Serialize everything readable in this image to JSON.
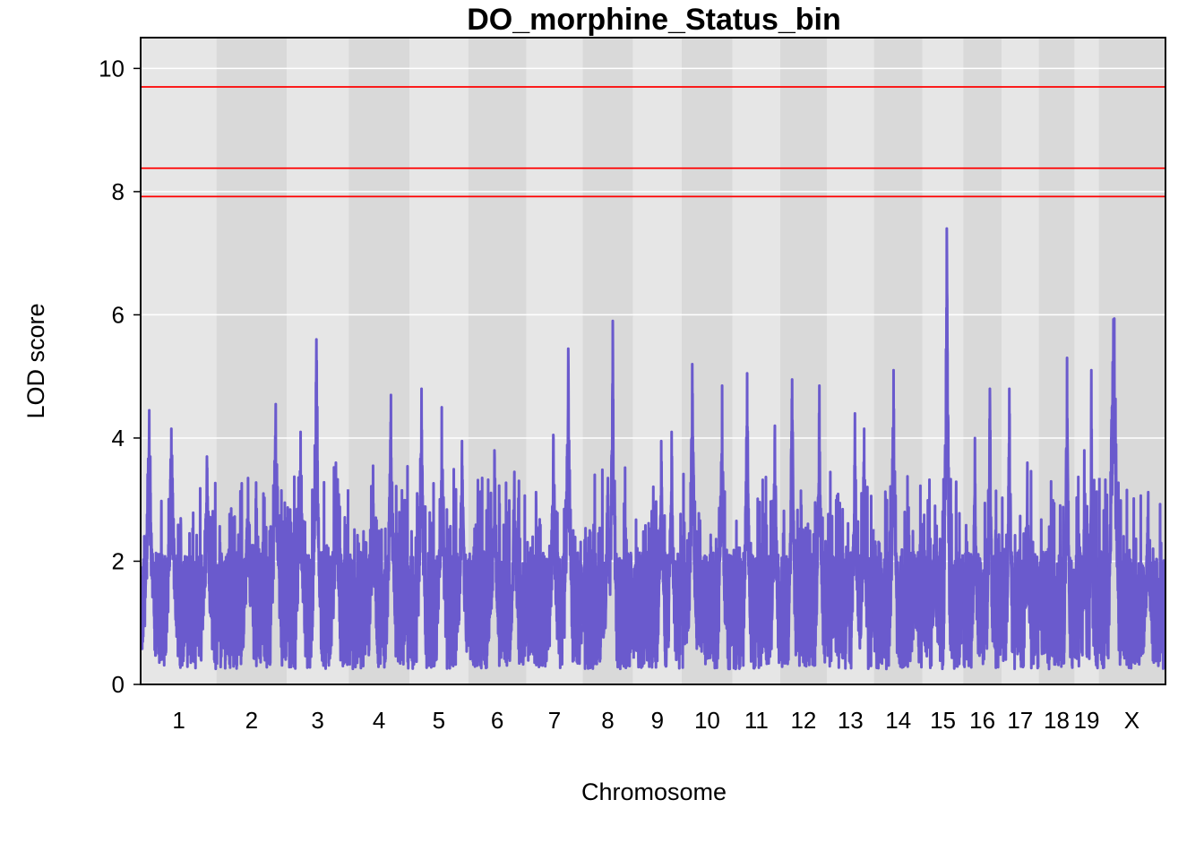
{
  "chart_data": {
    "type": "line",
    "title": "DO_morphine_Status_bin",
    "xlabel": "Chromosome",
    "ylabel": "LOD score",
    "ylim": [
      0,
      10.5
    ],
    "yticks": [
      0,
      2,
      4,
      6,
      8,
      10
    ],
    "grid": true,
    "colors": {
      "line": "#6a5acd",
      "threshold": "#ff0000",
      "band_light": "#e6e6e6",
      "band_dark": "#d9d9d9",
      "grid": "#ffffff"
    },
    "thresholds": [
      9.7,
      8.38,
      7.92
    ],
    "chromosomes": [
      {
        "label": "1",
        "length": 195,
        "peaks": [
          {
            "pos": 0.1,
            "lod": 4.45
          },
          {
            "pos": 0.4,
            "lod": 4.15
          },
          {
            "pos": 0.88,
            "lod": 3.7
          }
        ]
      },
      {
        "label": "2",
        "length": 182,
        "peaks": [
          {
            "pos": 0.45,
            "lod": 3.35
          },
          {
            "pos": 0.85,
            "lod": 4.55
          }
        ]
      },
      {
        "label": "3",
        "length": 160,
        "peaks": [
          {
            "pos": 0.22,
            "lod": 4.1
          },
          {
            "pos": 0.48,
            "lod": 5.6
          },
          {
            "pos": 0.8,
            "lod": 3.6
          }
        ]
      },
      {
        "label": "4",
        "length": 157,
        "peaks": [
          {
            "pos": 0.4,
            "lod": 3.55
          },
          {
            "pos": 0.7,
            "lod": 4.7
          }
        ]
      },
      {
        "label": "5",
        "length": 152,
        "peaks": [
          {
            "pos": 0.2,
            "lod": 4.8
          },
          {
            "pos": 0.55,
            "lod": 4.5
          },
          {
            "pos": 0.9,
            "lod": 3.95
          }
        ]
      },
      {
        "label": "6",
        "length": 150,
        "peaks": [
          {
            "pos": 0.45,
            "lod": 3.8
          },
          {
            "pos": 0.8,
            "lod": 3.45
          }
        ]
      },
      {
        "label": "7",
        "length": 145,
        "peaks": [
          {
            "pos": 0.48,
            "lod": 4.05
          },
          {
            "pos": 0.75,
            "lod": 5.45
          }
        ]
      },
      {
        "label": "8",
        "length": 130,
        "peaks": [
          {
            "pos": 0.5,
            "lod": 3.35
          },
          {
            "pos": 0.6,
            "lod": 5.9
          }
        ]
      },
      {
        "label": "9",
        "length": 125,
        "peaks": [
          {
            "pos": 0.58,
            "lod": 3.95
          },
          {
            "pos": 0.8,
            "lod": 4.1
          }
        ]
      },
      {
        "label": "10",
        "length": 131,
        "peaks": [
          {
            "pos": 0.2,
            "lod": 5.2
          },
          {
            "pos": 0.8,
            "lod": 4.85
          }
        ]
      },
      {
        "label": "11",
        "length": 122,
        "peaks": [
          {
            "pos": 0.3,
            "lod": 5.05
          },
          {
            "pos": 0.9,
            "lod": 4.2
          }
        ]
      },
      {
        "label": "12",
        "length": 120,
        "peaks": [
          {
            "pos": 0.25,
            "lod": 4.95
          },
          {
            "pos": 0.85,
            "lod": 4.85
          }
        ]
      },
      {
        "label": "13",
        "length": 121,
        "peaks": [
          {
            "pos": 0.6,
            "lod": 4.4
          },
          {
            "pos": 0.8,
            "lod": 4.15
          }
        ]
      },
      {
        "label": "14",
        "length": 125,
        "peaks": [
          {
            "pos": 0.4,
            "lod": 5.1
          },
          {
            "pos": 0.85,
            "lod": 2.1
          }
        ]
      },
      {
        "label": "15",
        "length": 104,
        "peaks": [
          {
            "pos": 0.6,
            "lod": 7.4
          },
          {
            "pos": 0.3,
            "lod": 2.9
          }
        ]
      },
      {
        "label": "16",
        "length": 98,
        "peaks": [
          {
            "pos": 0.3,
            "lod": 4.0
          },
          {
            "pos": 0.7,
            "lod": 4.8
          }
        ]
      },
      {
        "label": "17",
        "length": 95,
        "peaks": [
          {
            "pos": 0.2,
            "lod": 4.8
          },
          {
            "pos": 0.7,
            "lod": 3.6
          }
        ]
      },
      {
        "label": "18",
        "length": 91,
        "peaks": [
          {
            "pos": 0.8,
            "lod": 5.3
          }
        ]
      },
      {
        "label": "19",
        "length": 61,
        "peaks": [
          {
            "pos": 0.7,
            "lod": 5.1
          },
          {
            "pos": 0.4,
            "lod": 3.8
          }
        ]
      },
      {
        "label": "X",
        "length": 171,
        "peaks": [
          {
            "pos": 0.22,
            "lod": 6.85
          },
          {
            "pos": 0.22,
            "lod": 5.7
          },
          {
            "pos": 0.75,
            "lod": 2.95
          }
        ]
      }
    ]
  }
}
